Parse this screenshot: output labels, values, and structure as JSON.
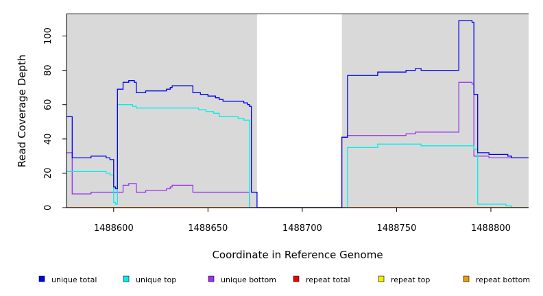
{
  "chart_data": {
    "type": "line",
    "title": "",
    "xlabel": "Coordinate in Reference Genome",
    "ylabel": "Read Coverage Depth",
    "xlim": [
      1488575,
      1488820
    ],
    "ylim": [
      0,
      113
    ],
    "xticks": [
      1488600,
      1488650,
      1488700,
      1488750,
      1488800
    ],
    "yticks": [
      0,
      20,
      40,
      60,
      80,
      100
    ],
    "shaded_regions": [
      {
        "x0": 1488575,
        "x1": 1488676,
        "color": "#d9d9d9"
      },
      {
        "x0": 1488721,
        "x1": 1488820,
        "color": "#d9d9d9"
      }
    ],
    "legend_position": "bottom",
    "series": [
      {
        "name": "unique total",
        "color": "#0000ee",
        "x": [
          1488575,
          1488578,
          1488578,
          1488588,
          1488588,
          1488596,
          1488596,
          1488598,
          1488598,
          1488600,
          1488600,
          1488601,
          1488601,
          1488602,
          1488602,
          1488605,
          1488605,
          1488608,
          1488608,
          1488611,
          1488611,
          1488612,
          1488612,
          1488617,
          1488617,
          1488628,
          1488628,
          1488630,
          1488630,
          1488631,
          1488631,
          1488642,
          1488642,
          1488646,
          1488646,
          1488650,
          1488650,
          1488654,
          1488654,
          1488656,
          1488656,
          1488658,
          1488658,
          1488669,
          1488669,
          1488671,
          1488671,
          1488672,
          1488672,
          1488673,
          1488673,
          1488676,
          1488676,
          1488721,
          1488721,
          1488724,
          1488724,
          1488740,
          1488740,
          1488755,
          1488755,
          1488760,
          1488760,
          1488763,
          1488763,
          1488783,
          1488783,
          1488790,
          1488790,
          1488791,
          1488791,
          1488793,
          1488793,
          1488799,
          1488799,
          1488809,
          1488809,
          1488811,
          1488811,
          1488820
        ],
        "y": [
          53,
          53,
          29,
          29,
          30,
          30,
          29,
          29,
          28,
          28,
          12,
          12,
          11,
          11,
          69,
          69,
          73,
          73,
          74,
          74,
          73,
          73,
          67,
          67,
          68,
          68,
          69,
          69,
          70,
          70,
          71,
          71,
          67,
          67,
          66,
          66,
          65,
          65,
          64,
          64,
          63,
          63,
          62,
          62,
          61,
          61,
          60,
          60,
          59,
          59,
          9,
          9,
          0,
          0,
          41,
          41,
          77,
          77,
          79,
          79,
          80,
          80,
          81,
          81,
          80,
          80,
          109,
          109,
          108,
          108,
          66,
          66,
          32,
          32,
          31,
          31,
          30,
          30,
          29,
          29
        ]
      },
      {
        "name": "unique top",
        "color": "#00eeee",
        "x": [
          1488575,
          1488596,
          1488596,
          1488598,
          1488598,
          1488600,
          1488600,
          1488601,
          1488601,
          1488602,
          1488602,
          1488610,
          1488610,
          1488612,
          1488612,
          1488645,
          1488645,
          1488649,
          1488649,
          1488653,
          1488653,
          1488656,
          1488656,
          1488666,
          1488666,
          1488669,
          1488669,
          1488672,
          1488672,
          1488721,
          1488721,
          1488724,
          1488724,
          1488740,
          1488740,
          1488763,
          1488763,
          1488791,
          1488791,
          1488793,
          1488793,
          1488808,
          1488808,
          1488811,
          1488811,
          1488820
        ],
        "y": [
          21,
          21,
          20,
          20,
          19,
          19,
          3,
          3,
          2,
          2,
          60,
          60,
          59,
          59,
          58,
          58,
          57,
          57,
          56,
          56,
          55,
          55,
          53,
          53,
          52,
          52,
          51,
          51,
          0,
          0,
          0,
          0,
          35,
          35,
          37,
          37,
          36,
          36,
          34,
          34,
          2,
          2,
          1,
          1,
          0,
          0
        ]
      },
      {
        "name": "unique bottom",
        "color": "#9a32ef",
        "x": [
          1488575,
          1488578,
          1488578,
          1488588,
          1488588,
          1488605,
          1488605,
          1488608,
          1488608,
          1488612,
          1488612,
          1488617,
          1488617,
          1488628,
          1488628,
          1488630,
          1488630,
          1488631,
          1488631,
          1488642,
          1488642,
          1488672,
          1488672,
          1488721,
          1488721,
          1488724,
          1488724,
          1488755,
          1488755,
          1488760,
          1488760,
          1488783,
          1488783,
          1488790,
          1488790,
          1488791,
          1488791,
          1488799,
          1488799,
          1488820
        ],
        "y": [
          32,
          32,
          8,
          8,
          9,
          9,
          13,
          13,
          14,
          14,
          9,
          9,
          10,
          10,
          11,
          11,
          12,
          12,
          13,
          13,
          9,
          9,
          0,
          0,
          41,
          41,
          42,
          42,
          43,
          43,
          44,
          44,
          73,
          73,
          72,
          72,
          30,
          30,
          29,
          29
        ]
      },
      {
        "name": "repeat total",
        "color": "#ee0000",
        "x": [
          1488575,
          1488820
        ],
        "y": [
          0,
          0
        ]
      },
      {
        "name": "repeat top",
        "color": "#eeee00",
        "x": [
          1488575,
          1488820
        ],
        "y": [
          0,
          0
        ]
      },
      {
        "name": "repeat bottom",
        "color": "#ee9a00",
        "x": [
          1488575,
          1488820
        ],
        "y": [
          0,
          0
        ]
      }
    ]
  }
}
